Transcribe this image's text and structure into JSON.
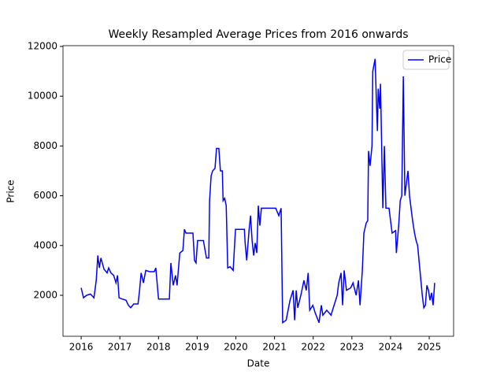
{
  "chart_data": {
    "type": "line",
    "title": "Weekly Resampled Average Prices from 2016 onwards",
    "xlabel": "Date",
    "ylabel": "Price",
    "x": [
      2016.0,
      2016.06,
      2016.14,
      2016.24,
      2016.33,
      2016.39,
      2016.43,
      2016.47,
      2016.51,
      2016.59,
      2016.67,
      2016.71,
      2016.77,
      2016.84,
      2016.9,
      2016.94,
      2016.98,
      2017.06,
      2017.16,
      2017.22,
      2017.28,
      2017.36,
      2017.47,
      2017.51,
      2017.55,
      2017.61,
      2017.67,
      2017.77,
      2017.89,
      2017.93,
      2018.0,
      2018.18,
      2018.28,
      2018.32,
      2018.38,
      2018.44,
      2018.48,
      2018.55,
      2018.63,
      2018.67,
      2018.71,
      2018.89,
      2018.93,
      2018.97,
      2019.01,
      2019.16,
      2019.24,
      2019.3,
      2019.32,
      2019.36,
      2019.4,
      2019.46,
      2019.5,
      2019.56,
      2019.6,
      2019.65,
      2019.67,
      2019.71,
      2019.75,
      2019.79,
      2019.85,
      2019.93,
      2019.99,
      2020.11,
      2020.22,
      2020.24,
      2020.28,
      2020.34,
      2020.38,
      2020.42,
      2020.46,
      2020.5,
      2020.54,
      2020.58,
      2020.62,
      2020.66,
      2020.83,
      2021.03,
      2021.11,
      2021.17,
      2021.21,
      2021.3,
      2021.4,
      2021.48,
      2021.52,
      2021.56,
      2021.6,
      2021.68,
      2021.76,
      2021.82,
      2021.87,
      2021.91,
      2021.99,
      2022.05,
      2022.15,
      2022.21,
      2022.25,
      2022.35,
      2022.46,
      2022.54,
      2022.62,
      2022.66,
      2022.72,
      2022.76,
      2022.8,
      2022.86,
      2022.97,
      2023.03,
      2023.11,
      2023.17,
      2023.21,
      2023.27,
      2023.31,
      2023.37,
      2023.41,
      2023.43,
      2023.47,
      2023.52,
      2023.54,
      2023.6,
      2023.64,
      2023.66,
      2023.68,
      2023.72,
      2023.74,
      2023.8,
      2023.84,
      2023.88,
      2023.96,
      2024.0,
      2024.04,
      2024.13,
      2024.15,
      2024.21,
      2024.25,
      2024.29,
      2024.33,
      2024.37,
      2024.41,
      2024.45,
      2024.49,
      2024.53,
      2024.57,
      2024.62,
      2024.66,
      2024.7,
      2024.76,
      2024.82,
      2024.86,
      2024.9,
      2024.94,
      2024.98,
      2025.02,
      2025.06,
      2025.1,
      2025.14
    ],
    "series": [
      {
        "name": "Price",
        "color": "#0000ff",
        "values": [
          2300,
          1900,
          2000,
          2050,
          1900,
          2600,
          3600,
          3100,
          3500,
          3050,
          2900,
          3100,
          2900,
          2800,
          2500,
          2800,
          1900,
          1850,
          1800,
          1600,
          1500,
          1650,
          1650,
          2200,
          2900,
          2500,
          3000,
          2950,
          2950,
          3100,
          1850,
          1850,
          1850,
          3300,
          2400,
          2800,
          2400,
          3700,
          3800,
          4650,
          4500,
          4500,
          3400,
          3300,
          4200,
          4200,
          3500,
          3500,
          5800,
          6800,
          7000,
          7100,
          7900,
          7900,
          7000,
          7000,
          5800,
          5900,
          5600,
          3100,
          3150,
          3000,
          4650,
          4650,
          4650,
          4100,
          3400,
          4600,
          5200,
          4200,
          3600,
          4100,
          3700,
          5600,
          4800,
          5500,
          5500,
          5500,
          5200,
          5500,
          900,
          1000,
          1800,
          2200,
          1000,
          2200,
          1500,
          2000,
          2600,
          2200,
          2900,
          1400,
          1600,
          1300,
          900,
          1600,
          1200,
          1400,
          1200,
          1600,
          2000,
          2500,
          2900,
          1600,
          3000,
          2200,
          2300,
          2500,
          2000,
          2600,
          1600,
          3000,
          4500,
          4900,
          5000,
          7800,
          7200,
          8000,
          11000,
          11500,
          9500,
          8600,
          10300,
          9500,
          10500,
          5500,
          8000,
          5500,
          5500,
          5000,
          4500,
          4600,
          3700,
          4800,
          5800,
          6000,
          10800,
          6000,
          6500,
          7000,
          6000,
          5500,
          5000,
          4500,
          4200,
          4000,
          3000,
          2000,
          1500,
          1600,
          2400,
          2200,
          1800,
          2100,
          1600,
          2500
        ]
      }
    ],
    "xlim": [
      2015.53,
      2025.63
    ],
    "ylim": [
      354,
      12030
    ],
    "xticks": [
      2016,
      2017,
      2018,
      2019,
      2020,
      2021,
      2022,
      2023,
      2024,
      2025
    ],
    "yticks": [
      2000,
      4000,
      6000,
      8000,
      10000,
      12000
    ],
    "legend": "upper right"
  }
}
